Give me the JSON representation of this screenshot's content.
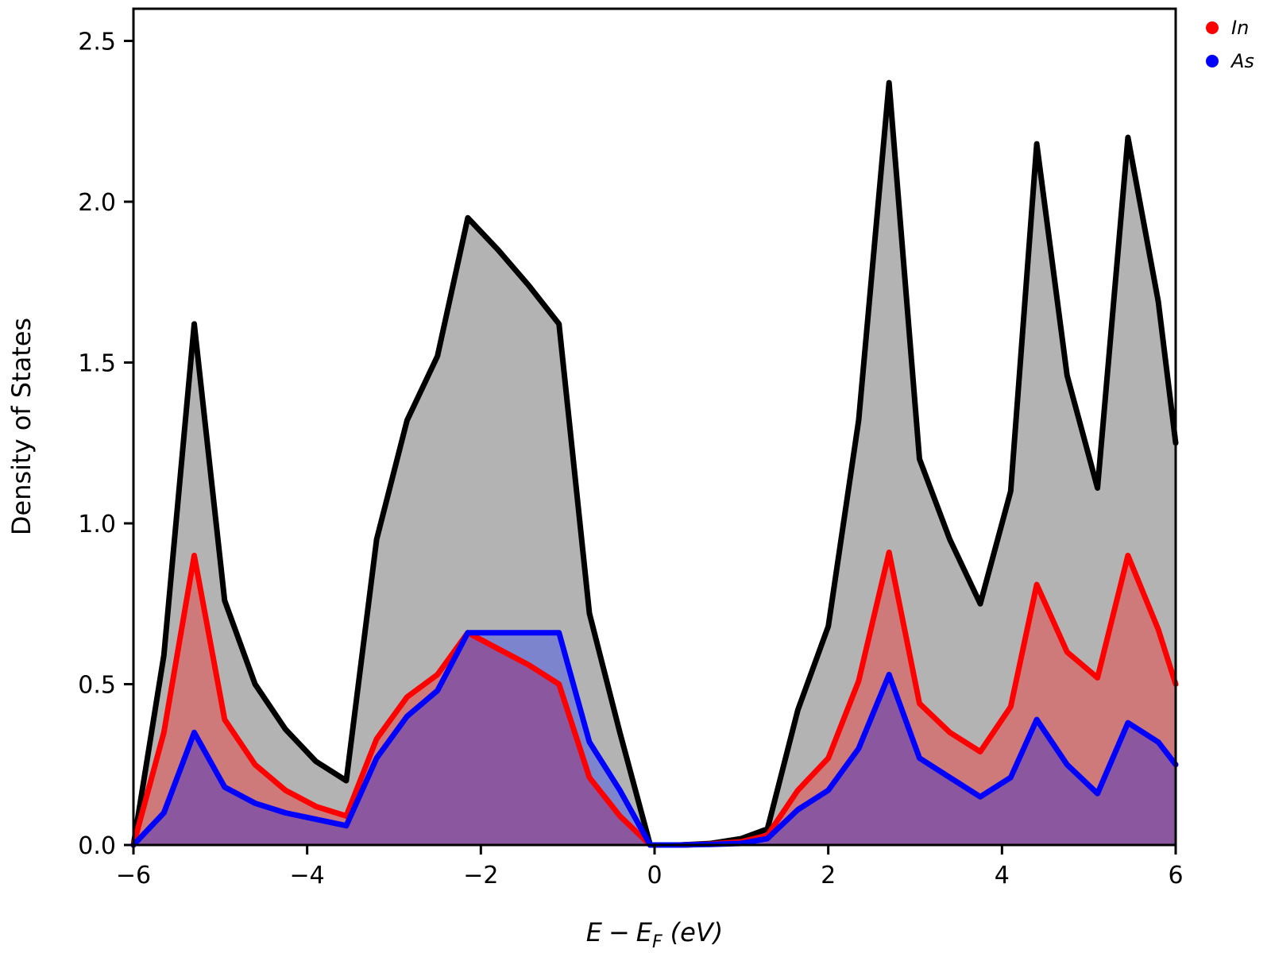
{
  "chart_data": {
    "type": "area",
    "title": "",
    "xlabel": "E − E_F (eV)",
    "xlabel_parts": {
      "e1": "E",
      "minus": "−",
      "e2": "E",
      "sub": "F",
      "unit": "(eV)"
    },
    "ylabel": "Density of States",
    "xlim": [
      -6,
      6
    ],
    "ylim": [
      0,
      2.6
    ],
    "xticks": [
      -6,
      -4,
      -2,
      0,
      2,
      4,
      6
    ],
    "xtick_labels": [
      "−6",
      "−4",
      "−2",
      "0",
      "2",
      "4",
      "6"
    ],
    "yticks": [
      0,
      0.5,
      1,
      1.5,
      2,
      2.5
    ],
    "ytick_labels": [
      "0.0",
      "0.5",
      "1.0",
      "1.5",
      "2.0",
      "2.5"
    ],
    "grid": false,
    "legend_position": "top-right",
    "x": [
      -6.0,
      -5.65,
      -5.3,
      -4.95,
      -4.6,
      -4.25,
      -3.9,
      -3.55,
      -3.2,
      -2.85,
      -2.5,
      -2.15,
      -1.8,
      -1.45,
      -1.1,
      -0.75,
      -0.4,
      -0.05,
      0.3,
      0.65,
      1.0,
      1.3,
      1.65,
      2.0,
      2.35,
      2.7,
      3.05,
      3.4,
      3.75,
      4.1,
      4.4,
      4.75,
      5.1,
      5.45,
      5.8,
      6.0
    ],
    "total": {
      "color": "#000000",
      "fill": "#b3b3b3",
      "values": [
        0.0,
        0.59,
        1.62,
        0.76,
        0.5,
        0.36,
        0.26,
        0.2,
        0.95,
        1.32,
        1.52,
        1.95,
        1.85,
        1.74,
        1.62,
        0.72,
        0.35,
        0.0,
        0.0,
        0.005,
        0.02,
        0.05,
        0.42,
        0.68,
        1.32,
        2.37,
        1.2,
        0.95,
        0.75,
        1.1,
        2.18,
        1.46,
        1.11,
        2.2,
        1.69,
        1.25
      ]
    },
    "series": [
      {
        "name": "In",
        "color": "#ff0000",
        "fill": "#ce7a7a",
        "values": [
          0.0,
          0.35,
          0.9,
          0.39,
          0.25,
          0.17,
          0.12,
          0.09,
          0.33,
          0.46,
          0.53,
          0.66,
          0.61,
          0.56,
          0.5,
          0.21,
          0.09,
          0.0,
          0.0,
          0.003,
          0.01,
          0.03,
          0.17,
          0.27,
          0.51,
          0.91,
          0.44,
          0.35,
          0.29,
          0.43,
          0.81,
          0.6,
          0.52,
          0.9,
          0.67,
          0.5
        ]
      },
      {
        "name": "As",
        "color": "#0000ff",
        "fill": "#7d84ce",
        "values": [
          0.0,
          0.1,
          0.35,
          0.18,
          0.13,
          0.1,
          0.08,
          0.06,
          0.27,
          0.4,
          0.48,
          0.66,
          0.66,
          0.66,
          0.66,
          0.32,
          0.17,
          0.0,
          0.0,
          0.002,
          0.005,
          0.02,
          0.11,
          0.17,
          0.3,
          0.53,
          0.27,
          0.21,
          0.15,
          0.21,
          0.39,
          0.25,
          0.16,
          0.38,
          0.32,
          0.25
        ]
      }
    ],
    "overlap_fill": "#8b579f"
  }
}
